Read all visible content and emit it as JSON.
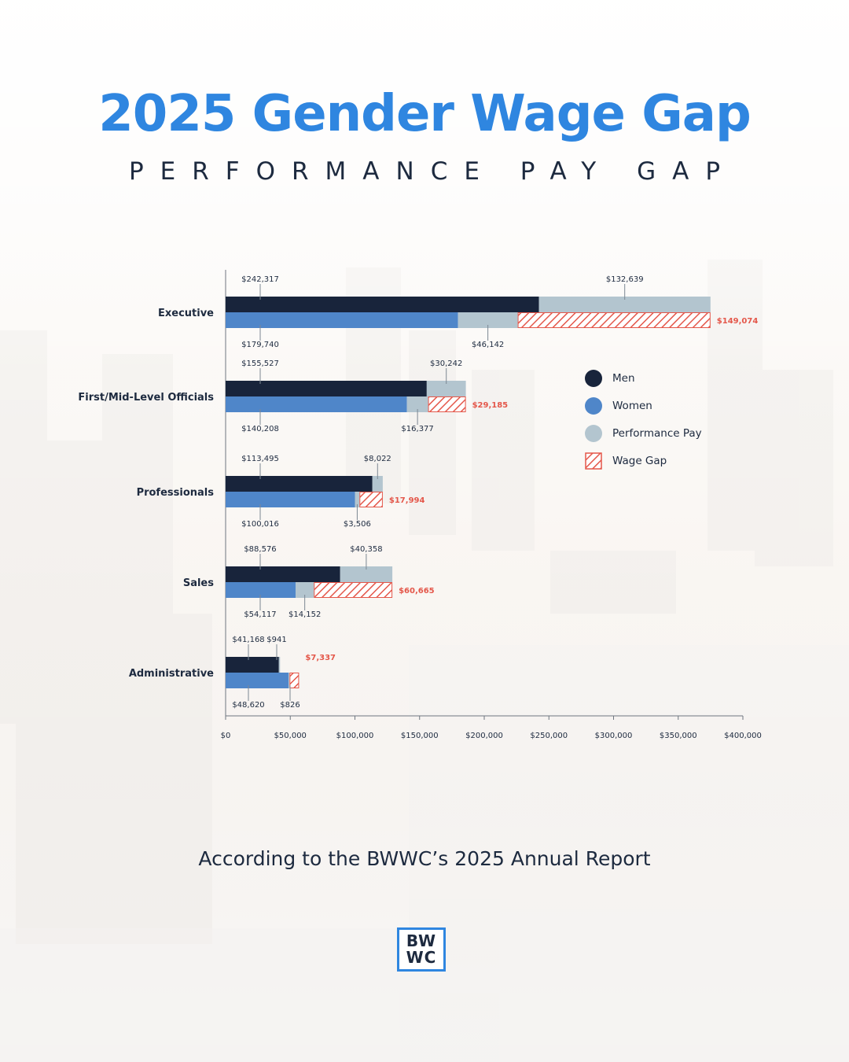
{
  "header": {
    "title": "2025 Gender Wage Gap",
    "subtitle": "PERFORMANCE PAY GAP"
  },
  "legend": {
    "men": "Men",
    "women": "Women",
    "performance": "Performance Pay",
    "gap": "Wage Gap"
  },
  "colors": {
    "men": "#18243b",
    "women": "#4f86c9",
    "performance": "#b3c5cf",
    "gap": "#e4574a",
    "title": "#2f86e0"
  },
  "chart_data": {
    "type": "bar",
    "orientation": "horizontal",
    "stacked": true,
    "title": "2025 Gender Wage Gap",
    "subtitle": "PERFORMANCE PAY GAP",
    "xlim": [
      0,
      400000
    ],
    "x_ticks": [
      0,
      50000,
      100000,
      150000,
      200000,
      250000,
      300000,
      350000,
      400000
    ],
    "x_tick_labels": [
      "$0",
      "$50,000",
      "$100,000",
      "$150,000",
      "$200,000",
      "$250,000",
      "$300,000",
      "$350,000",
      "$400,000"
    ],
    "categories": [
      {
        "name": "Executive",
        "men_base": 242317,
        "men_base_label": "$242,317",
        "men_perf": 132639,
        "men_perf_label": "$132,639",
        "women_base": 179740,
        "women_base_label": "$179,740",
        "women_perf": 46142,
        "women_perf_label": "$46,142",
        "gap": 149074,
        "gap_label": "$149,074"
      },
      {
        "name": "First/Mid-Level Officials",
        "men_base": 155527,
        "men_base_label": "$155,527",
        "men_perf": 30242,
        "men_perf_label": "$30,242",
        "women_base": 140208,
        "women_base_label": "$140,208",
        "women_perf": 16377,
        "women_perf_label": "$16,377",
        "gap": 29185,
        "gap_label": "$29,185"
      },
      {
        "name": "Professionals",
        "men_base": 113495,
        "men_base_label": "$113,495",
        "men_perf": 8022,
        "men_perf_label": "$8,022",
        "women_base": 100016,
        "women_base_label": "$100,016",
        "women_perf": 3506,
        "women_perf_label": "$3,506",
        "gap": 17994,
        "gap_label": "$17,994"
      },
      {
        "name": "Sales",
        "men_base": 88576,
        "men_base_label": "$88,576",
        "men_perf": 40358,
        "men_perf_label": "$40,358",
        "women_base": 54117,
        "women_base_label": "$54,117",
        "women_perf": 14152,
        "women_perf_label": "$14,152",
        "gap": 60665,
        "gap_label": "$60,665"
      },
      {
        "name": "Administrative",
        "men_base": 41168,
        "men_base_label": "$41,168",
        "men_perf": 941,
        "men_perf_label": "$941",
        "women_base": 48620,
        "women_base_label": "$48,620",
        "women_perf": 826,
        "women_perf_label": "$826",
        "gap": 7337,
        "gap_label": "$7,337"
      }
    ]
  },
  "footer": {
    "source": "According to the BWWC’s 2025 Annual Report",
    "logo_line1": "BW",
    "logo_line2": "WC"
  }
}
